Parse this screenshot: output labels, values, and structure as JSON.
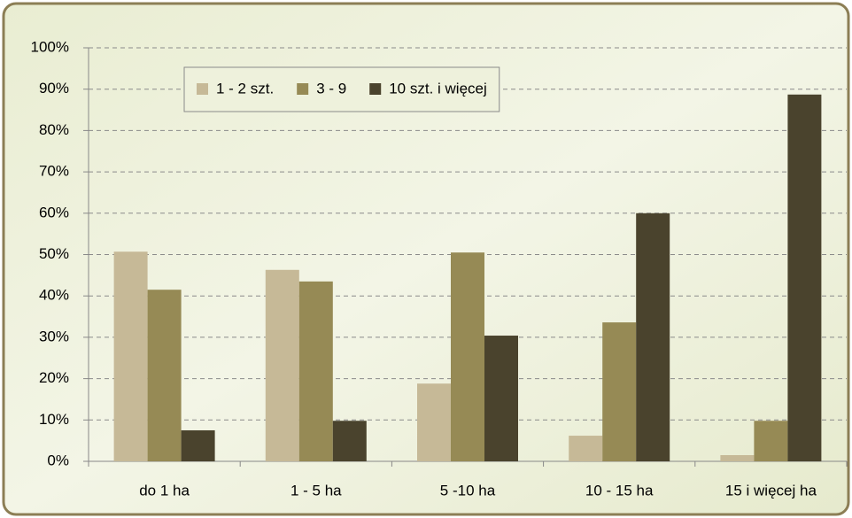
{
  "chart_data": {
    "type": "bar",
    "categories": [
      "do 1 ha",
      "1 - 5 ha",
      "5 -10 ha",
      "10 - 15 ha",
      "15 i więcej ha"
    ],
    "series": [
      {
        "name": "1 - 2 szt.",
        "color": "#c6b997",
        "values": [
          50.7,
          46.3,
          18.8,
          6.2,
          1.5
        ]
      },
      {
        "name": "3 - 9",
        "color": "#968a55",
        "values": [
          41.5,
          43.5,
          50.5,
          33.6,
          9.8
        ]
      },
      {
        "name": "10 szt. i więcej",
        "color": "#4a432d",
        "values": [
          7.5,
          9.8,
          30.4,
          60,
          88.7
        ]
      }
    ],
    "ylim": [
      0,
      100
    ],
    "yticks": [
      {
        "value": 0,
        "label": "0%"
      },
      {
        "value": 10,
        "label": "10%"
      },
      {
        "value": 20,
        "label": "20%"
      },
      {
        "value": 30,
        "label": "30%"
      },
      {
        "value": 40,
        "label": "40%"
      },
      {
        "value": 50,
        "label": "50%"
      },
      {
        "value": 60,
        "label": "60%"
      },
      {
        "value": 70,
        "label": "70%"
      },
      {
        "value": 80,
        "label": "80%"
      },
      {
        "value": 90,
        "label": "90%"
      },
      {
        "value": 100,
        "label": "100%"
      }
    ],
    "grid": true
  }
}
